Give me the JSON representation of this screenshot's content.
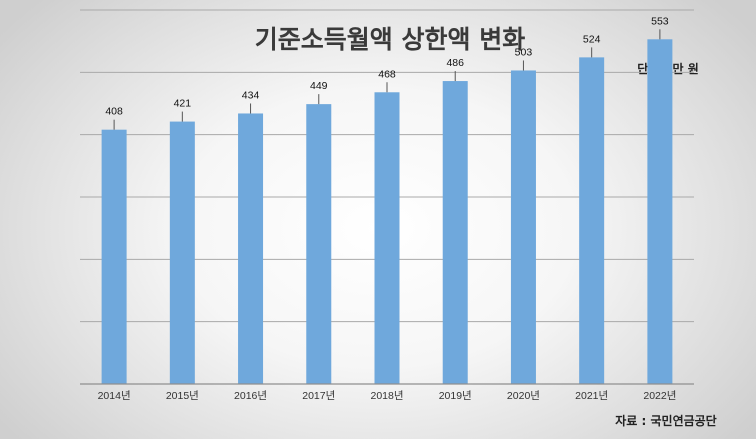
{
  "chart_data": {
    "type": "bar",
    "title": "기준소득월액 상한액 변화",
    "unit_label": "단위 : 만 원",
    "source_label": "자료 : 국민연금공단",
    "categories": [
      "2014년",
      "2015년",
      "2016년",
      "2017년",
      "2018년",
      "2019년",
      "2020년",
      "2021년",
      "2022년"
    ],
    "values": [
      408,
      421,
      434,
      449,
      468,
      486,
      503,
      524,
      553
    ],
    "ylim": [
      0,
      600
    ],
    "grid": true,
    "bar_color": "#6fa8dc"
  }
}
